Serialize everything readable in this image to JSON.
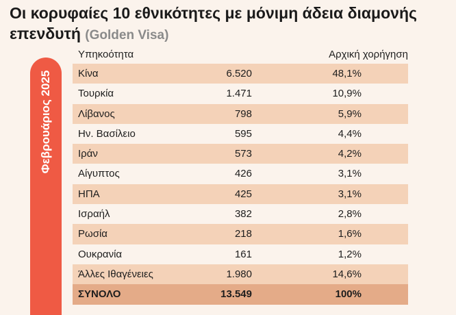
{
  "title": "Οι κορυφαίες 10 εθνικότητες με μόνιμη άδεια διαμονής επενδυτή",
  "subtitle": "(Golden Visa)",
  "side_label": "Φεβρουάριος 2025",
  "columns": {
    "nationality": "Υπηκοότητα",
    "initial_grant": "Αρχική χορήγηση"
  },
  "chart_data": {
    "type": "table",
    "title": "Οι κορυφαίες 10 εθνικότητες με μόνιμη άδεια διαμονής επενδυτή (Golden Visa)",
    "columns": [
      "Υπηκοότητα",
      "",
      "Αρχική χορήγηση"
    ],
    "rows": [
      {
        "name": "Κίνα",
        "count": "6.520",
        "pct": "48,1%"
      },
      {
        "name": "Τουρκία",
        "count": "1.471",
        "pct": "10,9%"
      },
      {
        "name": "Λίβανος",
        "count": "798",
        "pct": "5,9%"
      },
      {
        "name": "Ην. Βασίλειο",
        "count": "595",
        "pct": "4,4%"
      },
      {
        "name": "Ιράν",
        "count": "573",
        "pct": "4,2%"
      },
      {
        "name": "Αίγυπτος",
        "count": "426",
        "pct": "3,1%"
      },
      {
        "name": "ΗΠΑ",
        "count": "425",
        "pct": "3,1%"
      },
      {
        "name": "Ισραήλ",
        "count": "382",
        "pct": "2,8%"
      },
      {
        "name": "Ρωσία",
        "count": "218",
        "pct": "1,6%"
      },
      {
        "name": "Ουκρανία",
        "count": "161",
        "pct": "1,2%"
      },
      {
        "name": "Άλλες Ιθαγένειες",
        "count": "1.980",
        "pct": "14,6%"
      }
    ],
    "total": {
      "name": "ΣΥΝΟΛΟ",
      "count": "13.549",
      "pct": "100%"
    }
  },
  "colors": {
    "accent": "#ef5a44",
    "row_shade": "#f4d2b8",
    "total_shade": "#e4ab88",
    "background": "#fbf3ec"
  }
}
